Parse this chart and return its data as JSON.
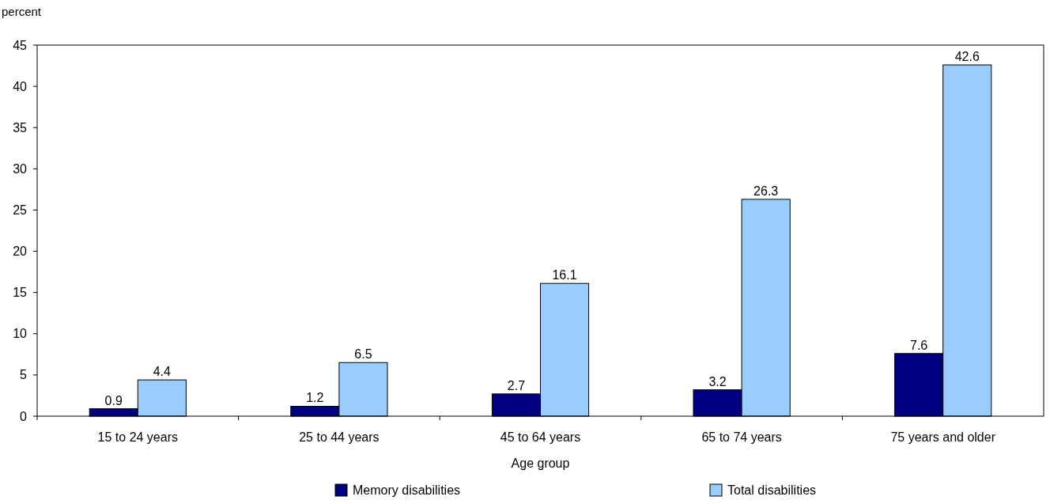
{
  "chart_data": {
    "type": "bar",
    "ylabel": "percent",
    "xlabel": "Age group",
    "categories": [
      "15 to 24 years",
      "25 to 44 years",
      "45 to 64 years",
      "65 to 74 years",
      "75 years and older"
    ],
    "series": [
      {
        "name": "Memory disabilities",
        "color": "#000080",
        "values": [
          0.9,
          1.2,
          2.7,
          3.2,
          7.6
        ]
      },
      {
        "name": "Total disabilities",
        "color": "#99ccff",
        "values": [
          4.4,
          6.5,
          16.1,
          26.3,
          42.6
        ]
      }
    ],
    "ylim": [
      0,
      45
    ],
    "yticks": [
      0,
      5,
      10,
      15,
      20,
      25,
      30,
      35,
      40,
      45
    ],
    "grid": false,
    "legend": "bottom",
    "data_labels": true
  }
}
